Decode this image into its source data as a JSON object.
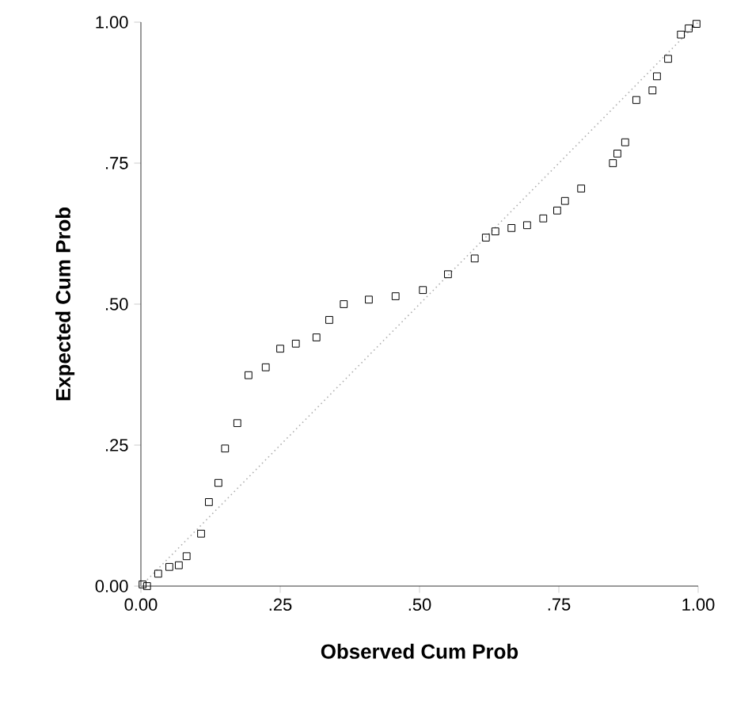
{
  "chart_data": {
    "type": "scatter",
    "xlabel": "Observed Cum Prob",
    "ylabel": "Expected Cum Prob",
    "xlim": [
      0,
      1
    ],
    "ylim": [
      0,
      1
    ],
    "xticks": [
      {
        "value": 0,
        "label": "0.00"
      },
      {
        "value": 0.25,
        "label": ".25"
      },
      {
        "value": 0.5,
        "label": ".50"
      },
      {
        "value": 0.75,
        "label": ".75"
      },
      {
        "value": 1,
        "label": "1.00"
      }
    ],
    "yticks": [
      {
        "value": 0,
        "label": "0.00"
      },
      {
        "value": 0.25,
        "label": ".25"
      },
      {
        "value": 0.5,
        "label": ".50"
      },
      {
        "value": 0.75,
        "label": ".75"
      },
      {
        "value": 1,
        "label": "1.00"
      }
    ],
    "marker": "square",
    "grid": false,
    "series": [
      {
        "color": "#000000",
        "x": [
          0.003,
          0.011,
          0.031,
          0.051,
          0.068,
          0.082,
          0.108,
          0.122,
          0.139,
          0.151,
          0.173,
          0.193,
          0.224,
          0.25,
          0.278,
          0.315,
          0.338,
          0.364,
          0.409,
          0.457,
          0.506,
          0.551,
          0.599,
          0.619,
          0.636,
          0.665,
          0.693,
          0.722,
          0.747,
          0.761,
          0.79,
          0.847,
          0.855,
          0.869,
          0.889,
          0.918,
          0.926,
          0.946,
          0.969,
          0.983,
          0.997
        ],
        "values": [
          0.003,
          0.0,
          0.022,
          0.034,
          0.037,
          0.053,
          0.093,
          0.149,
          0.183,
          0.244,
          0.289,
          0.374,
          0.388,
          0.421,
          0.43,
          0.441,
          0.472,
          0.5,
          0.508,
          0.514,
          0.525,
          0.553,
          0.581,
          0.618,
          0.629,
          0.635,
          0.64,
          0.652,
          0.666,
          0.683,
          0.705,
          0.75,
          0.767,
          0.787,
          0.862,
          0.879,
          0.904,
          0.935,
          0.978,
          0.989,
          0.997
        ]
      },
      {
        "type": "line",
        "color": "#b0b0b0",
        "line_style": "dotted",
        "marker": "none",
        "x": [
          0,
          1
        ],
        "values": [
          0,
          1
        ]
      }
    ]
  }
}
